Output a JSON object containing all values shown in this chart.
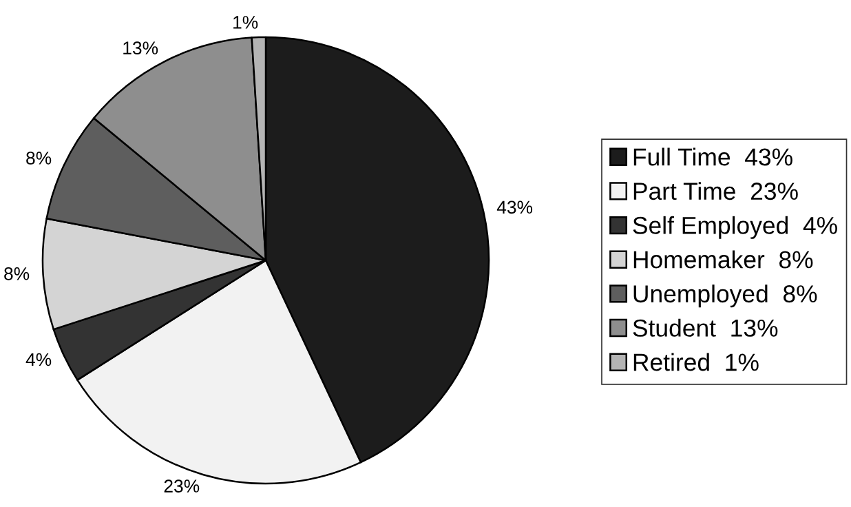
{
  "chart_data": {
    "type": "pie",
    "categories": [
      "Full Time  43%",
      "Part Time  23%",
      "Self Employed  4%",
      "Homemaker  8%",
      "Unemployed  8%",
      "Student  13%",
      "Retired  1%"
    ],
    "values": [
      43,
      23,
      4,
      8,
      8,
      13,
      1
    ],
    "value_labels": [
      "43%",
      "23%",
      "4%",
      "8%",
      "8%",
      "13%",
      "1%"
    ],
    "colors": [
      "#1c1c1c",
      "#f2f2f2",
      "#333333",
      "#d4d4d4",
      "#5e5e5e",
      "#8e8e8e",
      "#b4b4b4"
    ],
    "legend": "right"
  }
}
